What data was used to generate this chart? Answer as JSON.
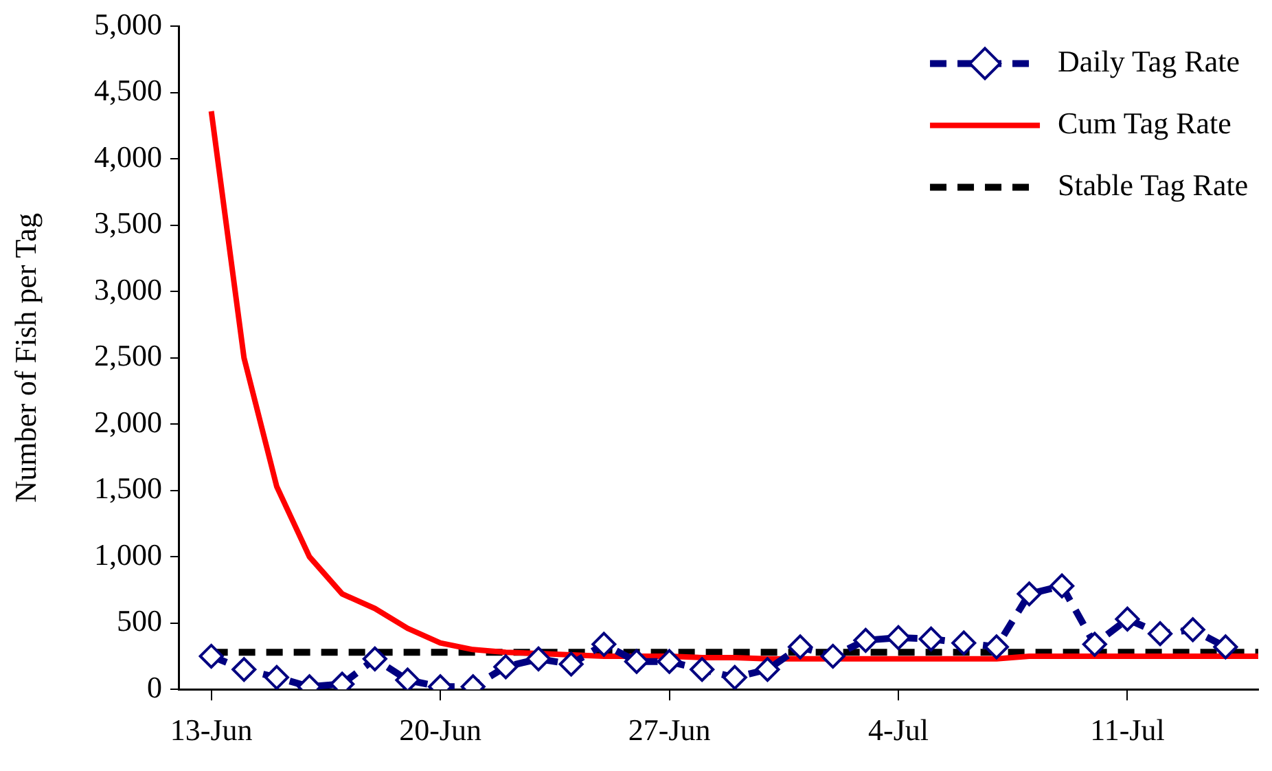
{
  "chart_data": {
    "type": "line",
    "ylabel": "Number of Fish per Tag",
    "x": [
      "--06-13",
      "--06-14",
      "--06-15",
      "--06-16",
      "--06-17",
      "--06-18",
      "--06-19",
      "--06-20",
      "--06-21",
      "--06-22",
      "--06-23",
      "--06-24",
      "--06-25",
      "--06-26",
      "--06-27",
      "--06-28",
      "--06-29",
      "--06-30",
      "--07-01",
      "--07-02",
      "--07-03",
      "--07-04",
      "--07-05",
      "--07-06",
      "--07-07",
      "--07-08",
      "--07-09",
      "--07-10",
      "--07-11",
      "--07-12",
      "--07-13",
      "--07-14",
      "--07-15"
    ],
    "series": [
      {
        "name": "Daily Tag Rate",
        "color": "#000080",
        "line_style": "dashed",
        "marker": "diamond",
        "values": [
          250,
          150,
          90,
          20,
          40,
          230,
          70,
          20,
          20,
          170,
          230,
          190,
          340,
          210,
          210,
          150,
          90,
          150,
          320,
          250,
          370,
          390,
          380,
          350,
          320,
          720,
          780,
          340,
          530,
          420,
          450,
          320,
          null
        ]
      },
      {
        "name": "Cum Tag Rate",
        "color": "#ff0000",
        "line_style": "solid",
        "marker": "none",
        "values": [
          4360,
          2500,
          1530,
          1000,
          720,
          610,
          460,
          350,
          300,
          280,
          270,
          260,
          250,
          250,
          250,
          240,
          240,
          230,
          230,
          230,
          230,
          230,
          230,
          230,
          230,
          250,
          250,
          250,
          250,
          250,
          250,
          250,
          250
        ]
      },
      {
        "name": "Stable Tag Rate",
        "color": "#000000",
        "line_style": "dashed",
        "marker": "none",
        "values": [
          280,
          280,
          280,
          280,
          280,
          280,
          280,
          280,
          280,
          280,
          280,
          280,
          280,
          280,
          280,
          280,
          280,
          280,
          280,
          280,
          280,
          280,
          280,
          280,
          280,
          280,
          280,
          280,
          280,
          280,
          280,
          280,
          280
        ]
      }
    ],
    "xlim": [
      "--06-12",
      "--07-15"
    ],
    "xticks": [
      {
        "value": "--06-13",
        "label": "13-Jun"
      },
      {
        "value": "--06-20",
        "label": "20-Jun"
      },
      {
        "value": "--06-27",
        "label": "27-Jun"
      },
      {
        "value": "--07-04",
        "label": "4-Jul"
      },
      {
        "value": "--07-11",
        "label": "11-Jul"
      }
    ],
    "ylim": [
      0,
      5000
    ],
    "yticks": [
      0,
      500,
      {
        "value": 1000,
        "label": "1,000"
      },
      {
        "value": 1500,
        "label": "1,500"
      },
      {
        "value": 2000,
        "label": "2,000"
      },
      {
        "value": 2500,
        "label": "2,500"
      },
      {
        "value": 3000,
        "label": "3,000"
      },
      {
        "value": 3500,
        "label": "3,500"
      },
      {
        "value": 4000,
        "label": "4,000"
      },
      {
        "value": 4500,
        "label": "4,500"
      },
      {
        "value": 5000,
        "label": "5,000"
      }
    ],
    "grid": false,
    "legend": "top right"
  }
}
